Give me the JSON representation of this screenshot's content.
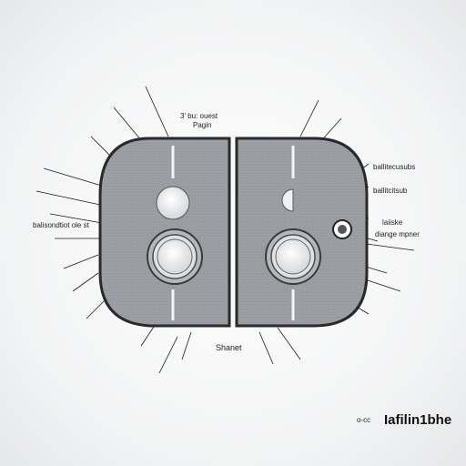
{
  "labels": {
    "top_line1": "3' bu: ouest",
    "top_line2": "Pagin",
    "right_1": "ballitecusubs",
    "right_2": "ballitcitsub",
    "right_3": "laiiske",
    "right_4": "diange mpner",
    "left_1": "balisondtiot ole st",
    "bottom": "Shanet"
  },
  "watermark": {
    "prefix": "o-cc",
    "text": "Iafilin1bhe"
  },
  "colors": {
    "panel_fill": "#9c9fa4",
    "panel_stroke": "#2a2a2a",
    "button_fill": "#e8e9ea",
    "background": "#f4f5f6"
  }
}
